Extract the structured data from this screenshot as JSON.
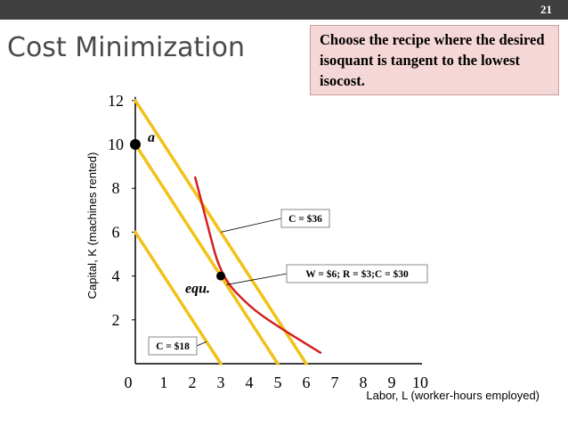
{
  "slide": {
    "number": "21",
    "title": "Cost Minimization"
  },
  "callout": {
    "text": "Choose the recipe where the desired isoquant is tangent to the lowest isocost."
  },
  "colors": {
    "isocost": "#f2c21a",
    "isoquant": "#d42020",
    "callout_bg": "#f6d7d7",
    "top_bar": "#3f3f3f"
  },
  "chart_data": {
    "type": "line",
    "xlabel": "Labor, L (worker-hours employed)",
    "ylabel": "Capital, K (machines rented)",
    "xlim": [
      0,
      10
    ],
    "ylim": [
      0,
      12
    ],
    "x_ticks": [
      "0",
      "1",
      "2",
      "3",
      "4",
      "5",
      "6",
      "7",
      "8",
      "9",
      "10"
    ],
    "y_ticks": [
      "2",
      "4",
      "6",
      "8",
      "10",
      "12"
    ],
    "series": [
      {
        "name": "C = $18",
        "kind": "isocost",
        "points": [
          [
            0,
            6
          ],
          [
            3,
            0
          ]
        ]
      },
      {
        "name": "W = $6; R = $3;C = $30",
        "kind": "isocost",
        "points": [
          [
            0,
            10
          ],
          [
            5,
            0
          ]
        ]
      },
      {
        "name": "C = $36",
        "kind": "isocost",
        "points": [
          [
            0,
            12
          ],
          [
            6,
            0
          ]
        ]
      },
      {
        "name": "",
        "kind": "isoquant",
        "points": [
          [
            2.1,
            8.5
          ],
          [
            2.5,
            6.5
          ],
          [
            3,
            4
          ],
          [
            4,
            2.6
          ],
          [
            5,
            1.7
          ],
          [
            6.5,
            0.5
          ]
        ]
      }
    ],
    "points": [
      {
        "label": "a",
        "x": 0,
        "y": 10
      },
      {
        "label": "equ.",
        "x": 3,
        "y": 4
      }
    ]
  }
}
